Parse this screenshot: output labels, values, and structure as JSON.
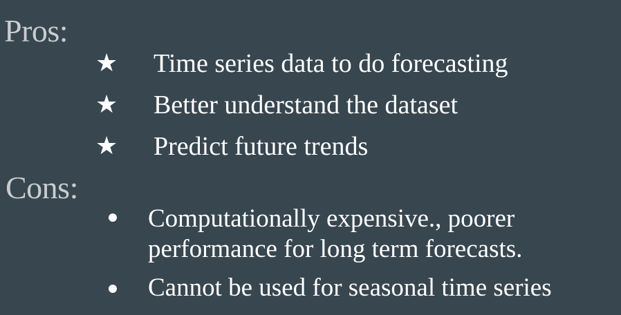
{
  "pros": {
    "heading": "Pros:",
    "bullet_icon": "star-icon",
    "items": [
      "Time series data to do forecasting",
      "Better understand the dataset",
      "Predict future trends"
    ]
  },
  "cons": {
    "heading": "Cons:",
    "bullet_icon": "dot-icon",
    "items": [
      {
        "line1": "Computationally expensive., poorer",
        "line2": "performance for long term forecasts."
      },
      {
        "line1": "Cannot be used for seasonal time series"
      }
    ]
  },
  "colors": {
    "background": "#38464f",
    "heading": "#c9cccf",
    "text": "#ffffff"
  }
}
